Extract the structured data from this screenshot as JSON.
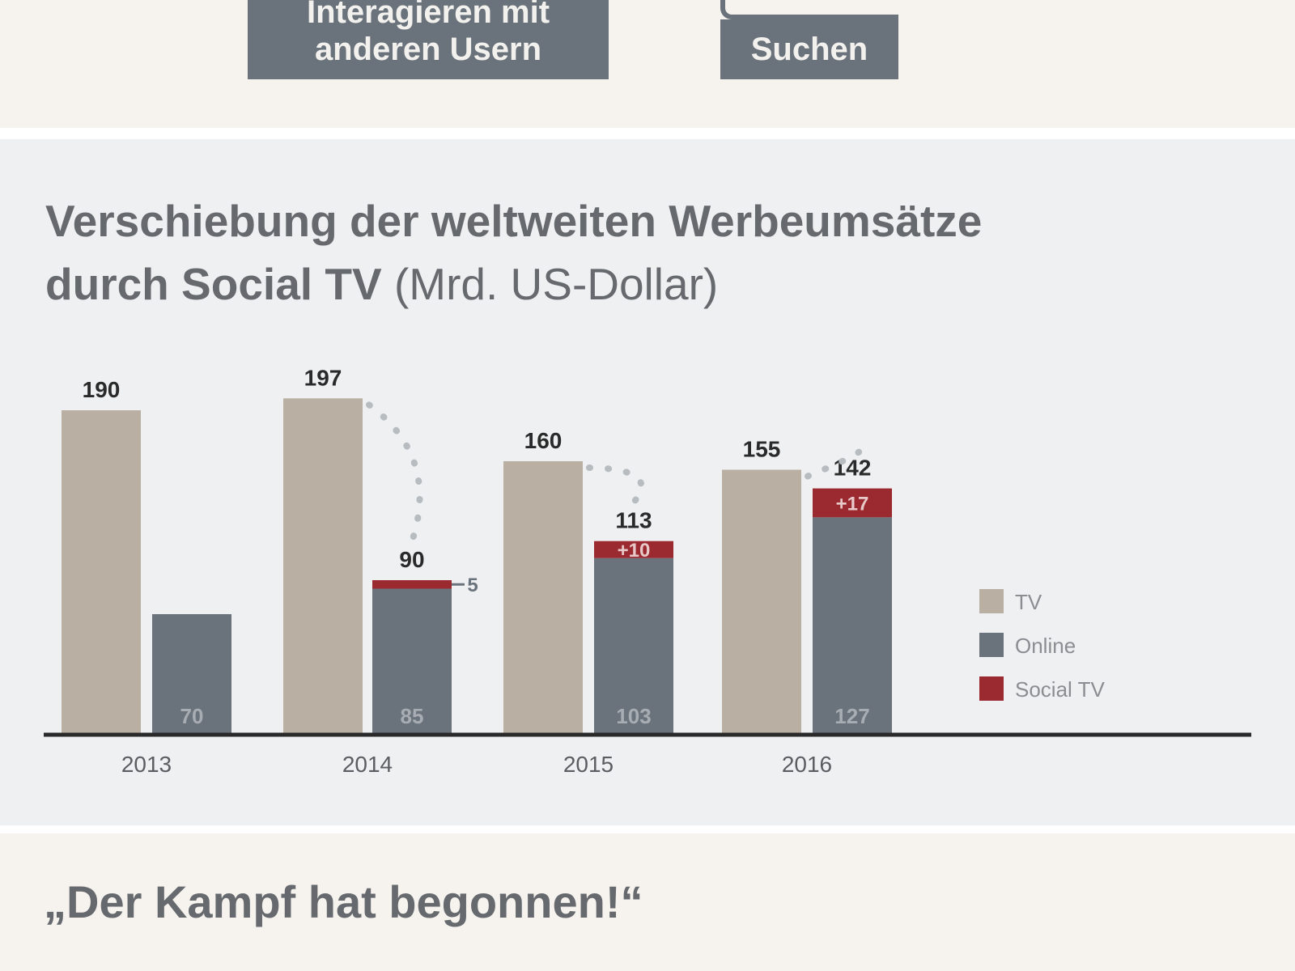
{
  "header": {
    "tag_1_line_1": "Interagieren mit",
    "tag_1_line_2": "anderen Usern",
    "tag_2": "Suchen"
  },
  "title_main_1": "Verschiebung der weltweiten Werbeumsätze",
  "title_main_2": "durch Social TV",
  "title_unit": "(Mrd. US-Dollar)",
  "quote": "„Der Kampf hat begonnen!“",
  "colors": {
    "tv": "#b9b0a3",
    "online": "#6a737c",
    "social_tv": "#9b2930",
    "dotted": "#b7bcc1",
    "axis": "#2a2a2a"
  },
  "chart_data": {
    "type": "bar",
    "categories": [
      "2013",
      "2014",
      "2015",
      "2016"
    ],
    "ylim": [
      0,
      200
    ],
    "series": [
      {
        "name": "TV",
        "values": [
          190,
          197,
          160,
          155
        ]
      },
      {
        "name": "Online",
        "values": [
          70,
          85,
          103,
          127
        ]
      },
      {
        "name": "Social TV",
        "values": [
          0,
          5,
          10,
          17
        ]
      }
    ],
    "online_totals": [
      "",
      "90",
      "113",
      "142"
    ],
    "tv_labels": [
      "190",
      "197",
      "160",
      "155"
    ],
    "online_base_labels": [
      "70",
      "85",
      "103",
      "127"
    ],
    "social_labels": [
      "",
      "5",
      "+10",
      "+17"
    ],
    "legend": [
      "TV",
      "Online",
      "Social TV"
    ],
    "legend_position": "right",
    "grid": false
  }
}
